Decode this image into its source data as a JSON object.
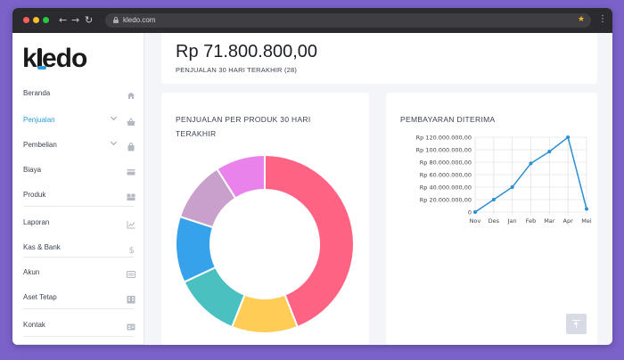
{
  "browser": {
    "url": "kledo.com"
  },
  "logo": {
    "text_k": "k",
    "text_rest": "edo"
  },
  "sidebar": {
    "items": [
      {
        "label": "Beranda",
        "icon": "home-icon"
      },
      {
        "label": "Penjualan",
        "icon": "basket-icon",
        "active": true,
        "expandable": true
      },
      {
        "label": "Pembelian",
        "icon": "bag-icon",
        "expandable": true
      },
      {
        "label": "Biaya",
        "icon": "card-icon"
      },
      {
        "label": "Produk",
        "icon": "boxes-icon"
      },
      {
        "label": "Laporan",
        "icon": "chart-icon"
      },
      {
        "label": "Kas & Bank",
        "icon": "dollar-icon"
      },
      {
        "label": "Akun",
        "icon": "list-icon"
      },
      {
        "label": "Aset Tetap",
        "icon": "building-icon"
      },
      {
        "label": "Kontak",
        "icon": "contact-icon"
      }
    ]
  },
  "summary": {
    "amount": "Rp 71.800.800,00",
    "caption": "PENJUALAN 30 HARI TERAKHIR (28)"
  },
  "product_card": {
    "title": "PENJUALAN PER PRODUK 30 HARI TERAKHIR"
  },
  "payment_card": {
    "title": "PEMBAYARAN DITERIMA"
  },
  "colors": {
    "accent": "#2b9bd6",
    "line": "#2b8fd0",
    "background": "#7b62c9"
  },
  "chart_data": [
    {
      "type": "pie",
      "title": "PENJUALAN PER PRODUK 30 HARI TERAKHIR",
      "values": [
        44,
        12,
        12,
        12,
        11,
        9
      ],
      "colors": [
        "#ff6384",
        "#ffcd56",
        "#4bc0c0",
        "#36a2eb",
        "#c9a0cc",
        "#e982ea"
      ],
      "donut": true
    },
    {
      "type": "line",
      "title": "PEMBAYARAN DITERIMA",
      "categories": [
        "Nov",
        "Des",
        "Jan",
        "Feb",
        "Mar",
        "Apr",
        "Mei"
      ],
      "series": [
        {
          "values": [
            0,
            20000000,
            40000000,
            78000000,
            97000000,
            120000000,
            5000000
          ]
        }
      ],
      "ylim": [
        0,
        120000000
      ],
      "yticks": [
        "0",
        "Rp 20.000.000,00",
        "Rp 40.000.000,00",
        "Rp 60.000.000,00",
        "Rp 80.000.000,00",
        "Rp 100.000.000,00",
        "Rp 120.000.000,00"
      ],
      "grid": true
    }
  ]
}
